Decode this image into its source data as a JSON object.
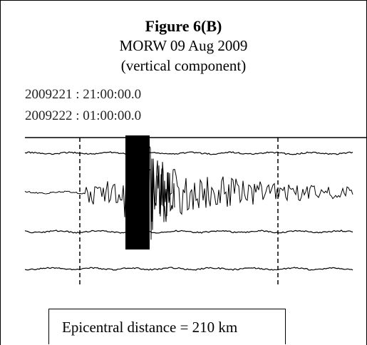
{
  "figure": {
    "title": "Figure 6(B)",
    "subtitle": "MORW 09 Aug 2009",
    "component": "(vertical component)",
    "time_start": "2009221 : 21:00:00.0",
    "time_end": "2009222 : 01:00:00.0",
    "distance_label": "Epicentral distance = 210 km"
  },
  "chart_data": {
    "type": "line",
    "title": "Figure 6(B)",
    "subtitle": "MORW 09 Aug 2009",
    "xlabel": "",
    "ylabel": "",
    "start_time": "2009221 : 21:00:00.0",
    "end_time": "2009222 : 01:00:00.0",
    "trace_lines": 4,
    "grid": false,
    "event_markers": [
      "first dashed marker",
      "second dashed marker"
    ],
    "annotation": "Epicentral distance = 210 km"
  }
}
